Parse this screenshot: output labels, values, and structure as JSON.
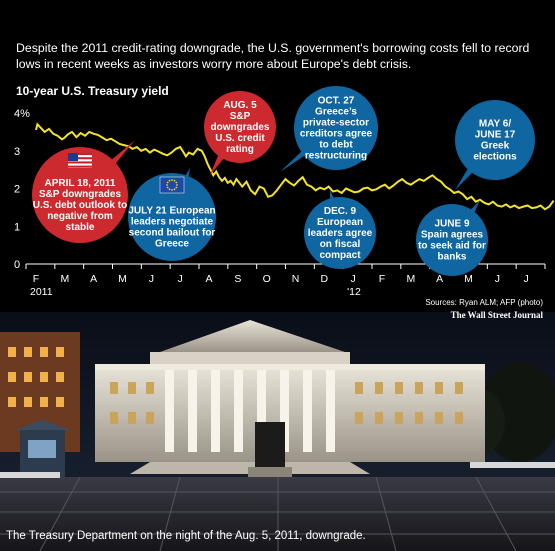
{
  "intro": "Despite the 2011 credit-rating downgrade, the U.S. government's borrowing costs fell to record lows in recent weeks as investors worry more about Europe's debt crisis.",
  "caption": "The Treasury Department on the night of the Aug. 5, 2011, downgrade.",
  "sources": {
    "line1": "Sources: Ryan ALM; AFP (photo)",
    "line2": "The Wall Street Journal"
  },
  "colors": {
    "line": "#f3e32a",
    "red_bubble": "#cc2a2e",
    "blue_bubble": "#0f66a0",
    "axis": "#ffffff"
  },
  "icons": [
    "us-flag-icon",
    "eu-flag-icon"
  ],
  "chart_data": {
    "type": "line",
    "title": "10-year U.S. Treasury yield",
    "ylim": [
      0,
      4
    ],
    "yticks": [
      "0",
      "1",
      "2",
      "3",
      "4%"
    ],
    "xticks": [
      "F",
      "M",
      "A",
      "M",
      "J",
      "J",
      "A",
      "S",
      "O",
      "N",
      "D",
      "J",
      "F",
      "M",
      "A",
      "M",
      "J",
      "J"
    ],
    "year_labels": [
      {
        "label": "2011",
        "month_index": 0
      },
      {
        "label": "'12",
        "month_index": 11
      }
    ],
    "series": [
      {
        "x": [
          0.0,
          0.05,
          0.15,
          0.3,
          0.45,
          0.6,
          0.75,
          0.9,
          1.0,
          1.1,
          1.25,
          1.4,
          1.55,
          1.7,
          1.85,
          2.0,
          2.15,
          2.3,
          2.45,
          2.6,
          2.75,
          2.9,
          3.05,
          3.2,
          3.35,
          3.5,
          3.65,
          3.8,
          3.95,
          4.1,
          4.25,
          4.4,
          4.55,
          4.7,
          4.85,
          5.0,
          5.1,
          5.2,
          5.3,
          5.45,
          5.6,
          5.75,
          5.85,
          5.95,
          6.05,
          6.15,
          6.25,
          6.35,
          6.45,
          6.55,
          6.65,
          6.75,
          6.85,
          6.95,
          7.05,
          7.15,
          7.3,
          7.45,
          7.6,
          7.75,
          7.9,
          8.05,
          8.2,
          8.35,
          8.5,
          8.65,
          8.8,
          8.95,
          9.1,
          9.25,
          9.4,
          9.55,
          9.7,
          9.85,
          10.0,
          10.15,
          10.3,
          10.45,
          10.6,
          10.75,
          10.9,
          11.05,
          11.2,
          11.35,
          11.5,
          11.65,
          11.8,
          11.95,
          12.1,
          12.25,
          12.4,
          12.55,
          12.7,
          12.85,
          13.0,
          13.15,
          13.3,
          13.45,
          13.6,
          13.75,
          13.9,
          14.05,
          14.2,
          14.35,
          14.5,
          14.65,
          14.8,
          14.95,
          15.1,
          15.25,
          15.4,
          15.55,
          15.7,
          15.85,
          16.0,
          16.15,
          16.3,
          16.45,
          16.6,
          16.75,
          16.9,
          17.05,
          17.2,
          17.35,
          17.5,
          17.65,
          17.8,
          17.95
        ],
        "values": [
          3.55,
          3.7,
          3.62,
          3.5,
          3.58,
          3.45,
          3.4,
          3.3,
          3.35,
          3.43,
          3.5,
          3.36,
          3.47,
          3.4,
          3.5,
          3.45,
          3.42,
          3.35,
          3.28,
          3.32,
          3.25,
          3.18,
          3.15,
          3.12,
          3.05,
          3.1,
          3.0,
          3.05,
          2.95,
          3.03,
          2.98,
          2.92,
          2.88,
          2.95,
          3.05,
          3.1,
          2.98,
          2.85,
          2.95,
          2.9,
          3.05,
          3.0,
          2.85,
          2.65,
          2.5,
          2.35,
          2.45,
          2.3,
          2.2,
          2.28,
          2.15,
          2.2,
          2.1,
          2.25,
          2.15,
          2.05,
          2.18,
          1.95,
          1.85,
          2.05,
          2.0,
          1.78,
          1.82,
          1.95,
          2.1,
          2.25,
          2.15,
          2.08,
          2.2,
          2.3,
          2.1,
          2.05,
          1.95,
          2.02,
          1.98,
          2.05,
          1.92,
          1.95,
          1.88,
          2.0,
          1.95,
          1.9,
          1.92,
          2.0,
          2.02,
          1.95,
          1.98,
          2.05,
          2.1,
          2.0,
          2.08,
          2.18,
          2.25,
          2.15,
          2.1,
          2.18,
          2.25,
          2.2,
          2.28,
          2.35,
          2.25,
          2.18,
          2.05,
          1.98,
          1.88,
          1.92,
          1.85,
          1.72,
          1.78,
          1.65,
          1.7,
          1.62,
          1.58,
          1.65,
          1.55,
          1.52,
          1.58,
          1.5,
          1.55,
          1.48,
          1.52,
          1.55,
          1.48,
          1.5,
          1.55,
          1.45,
          1.52,
          1.68
        ]
      }
    ],
    "annotations": [
      {
        "text": "APRIL 18, 2011 S&P downgrades U.S. debt outlook to negative from stable",
        "color": "red",
        "x": 2.6,
        "y": 3.3,
        "icon": "us-flag-icon"
      },
      {
        "text": "AUG. 5 S&P downgrades U.S. credit rating",
        "color": "red",
        "x": 6.1,
        "y": 3.0
      },
      {
        "text": "JULY 21 European leaders negotiate second bailout for Greece",
        "color": "blue",
        "x": 5.7,
        "y": 2.4,
        "icon": "eu-flag-icon"
      },
      {
        "text": "OCT. 27 Greece's private-sector creditors agree to debt restructuring",
        "color": "blue",
        "x": 8.6,
        "y": 2.4
      },
      {
        "text": "DEC. 9 European leaders agree on fiscal compact",
        "color": "blue",
        "x": 10.2,
        "y": 1.9
      },
      {
        "text": "MAY 6/ JUNE 17 Greek elections",
        "color": "blue",
        "x": 15.5,
        "y": 1.7
      },
      {
        "text": "JUNE 9 Spain agrees to seek aid for banks",
        "color": "blue",
        "x": 16.2,
        "y": 1.6
      }
    ],
    "grid": false
  }
}
